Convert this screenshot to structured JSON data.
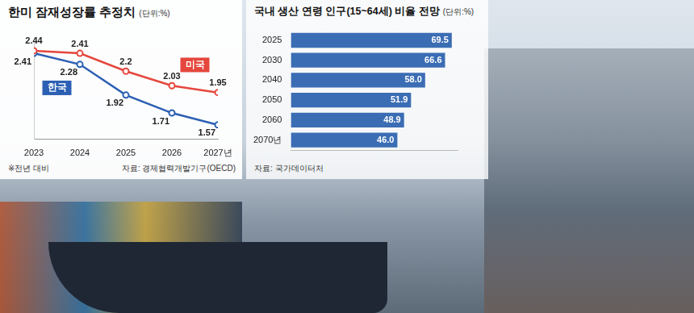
{
  "chart_data": [
    {
      "type": "line",
      "title": "한미 잠재성장률 추정치",
      "subtitle": "(단위:%)",
      "categories": [
        "2023",
        "2024",
        "2025",
        "2026",
        "2027년"
      ],
      "series": [
        {
          "name": "미국",
          "color": "#e5473d",
          "marker": "circle",
          "values": [
            2.44,
            2.41,
            2.2,
            2.03,
            1.95
          ]
        },
        {
          "name": "한국",
          "color": "#2b5fb3",
          "marker": "circle",
          "values": [
            2.41,
            2.28,
            1.92,
            1.71,
            1.57
          ]
        }
      ],
      "ylim": [
        1.4,
        2.6
      ],
      "grid": false,
      "tick_labels": "x",
      "data_labels": true,
      "annotations": [
        "※전년 대비",
        "자료: 경제협력개발기구(OECD)"
      ]
    },
    {
      "type": "bar",
      "orientation": "horizontal",
      "title": "국내 생산 연령 인구(15~64세) 비율 전망",
      "subtitle": "(단위:%)",
      "categories": [
        "2025",
        "2030",
        "2040",
        "2050",
        "2060",
        "2070년"
      ],
      "values": [
        69.5,
        66.6,
        58.0,
        51.9,
        48.9,
        46.0
      ],
      "value_labels": [
        "69.5",
        "66.6",
        "58.0",
        "51.9",
        "48.9",
        "46.0"
      ],
      "color": "#3b6db4",
      "xlim": [
        0,
        72
      ],
      "grid": false,
      "tick_labels": "y",
      "data_labels": true,
      "annotations": [
        "자료: 국가데이터처"
      ]
    }
  ]
}
